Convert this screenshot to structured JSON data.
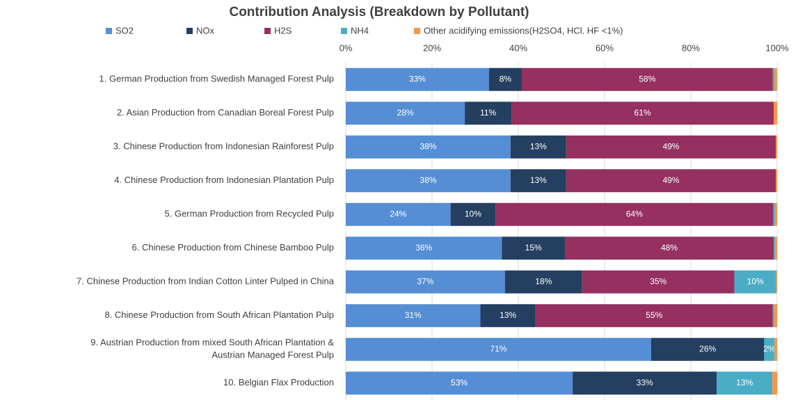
{
  "chart_data": {
    "type": "stacked_bar_horizontal",
    "title": "Contribution Analysis (Breakdown by Pollutant)",
    "categories": [
      "1. German Production from Swedish Managed Forest Pulp",
      "2. Asian Production from Canadian Boreal Forest Pulp",
      "3. Chinese Production from Indonesian Rainforest Pulp",
      "4. Chinese Production from Indonesian Plantation Pulp",
      "5. German Production from Recycled Pulp",
      "6. Chinese Production from Chinese Bamboo Pulp",
      "7. Chinese Production from Indian Cotton Linter Pulped in China",
      "8. Chinese Production from South African Plantation Pulp",
      "9. Austrian Production from mixed South African Plantation &\nAustrian Managed Forest Pulp",
      "10. Belgian Flax Production"
    ],
    "series": [
      {
        "name": "SO2",
        "color": "#558ed5",
        "values": [
          33.2,
          27.6,
          38.2,
          38.2,
          24.3,
          36.2,
          36.9,
          31.2,
          70.8,
          52.6
        ],
        "value_labels": [
          "33%",
          "28%",
          "38%",
          "38%",
          "24%",
          "36%",
          "37%",
          "31%",
          "71%",
          "53%"
        ]
      },
      {
        "name": "NOx",
        "color": "#243f60",
        "values": [
          7.6,
          10.8,
          12.9,
          12.9,
          10.4,
          14.6,
          17.9,
          12.8,
          26.2,
          33.4
        ],
        "value_labels": [
          "8%",
          "11%",
          "13%",
          "13%",
          "10%",
          "15%",
          "18%",
          "13%",
          "26%",
          "33%"
        ]
      },
      {
        "name": "H2S",
        "color": "#953060",
        "values": [
          58.2,
          60.8,
          48.6,
          48.6,
          64.4,
          48.4,
          35.3,
          55.0,
          0,
          0
        ],
        "value_labels": [
          "58%",
          "61%",
          "49%",
          "49%",
          "64%",
          "48%",
          "35%",
          "55%",
          null,
          null
        ]
      },
      {
        "name": "NH4",
        "color": "#4bacc6",
        "values": [
          0.4,
          0,
          0,
          0,
          0.4,
          0.3,
          9.7,
          0.3,
          2.4,
          12.9
        ],
        "value_labels": [
          null,
          null,
          null,
          null,
          null,
          null,
          "10%",
          null,
          "2%",
          "13%"
        ]
      },
      {
        "name": "Other acidifying emissions(H2SO4, HCl. HF <1%)",
        "color": "#f79646",
        "values": [
          0.6,
          0.8,
          0.3,
          0.3,
          0.5,
          0.5,
          0.2,
          0.7,
          0.6,
          1.1
        ],
        "value_labels": [
          null,
          null,
          null,
          null,
          null,
          null,
          null,
          null,
          null,
          null
        ]
      }
    ],
    "xlim": [
      0,
      100
    ],
    "xticks": [
      {
        "value": 0,
        "label": "0%"
      },
      {
        "value": 20,
        "label": "20%"
      },
      {
        "value": 40,
        "label": "40%"
      },
      {
        "value": 60,
        "label": "60%"
      },
      {
        "value": 80,
        "label": "80%"
      },
      {
        "value": 100,
        "label": "100%"
      }
    ],
    "grid": true,
    "legend": "top"
  }
}
